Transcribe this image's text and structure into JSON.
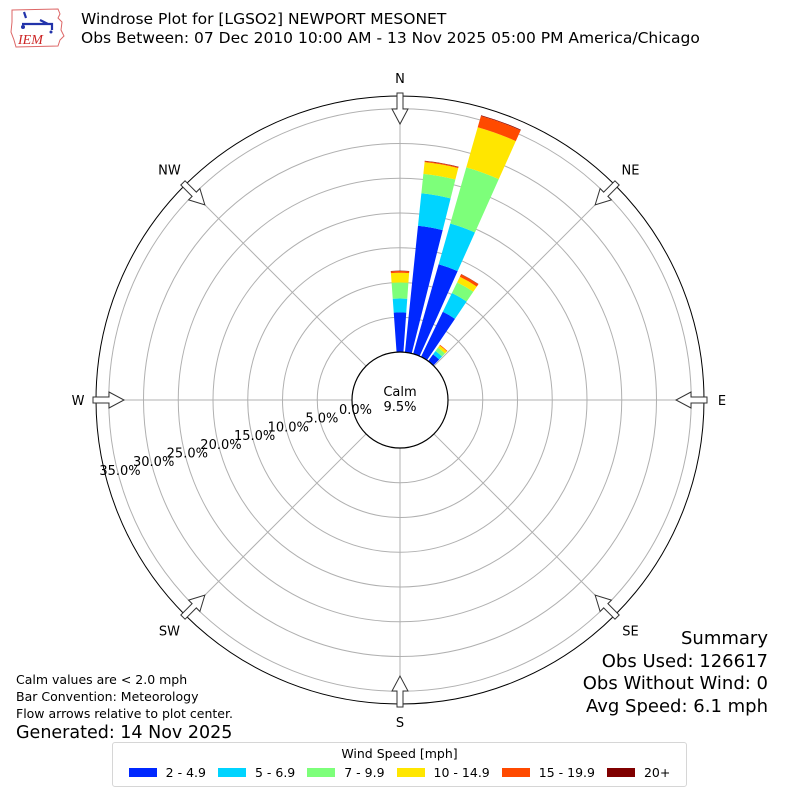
{
  "header": {
    "logo_text": "IEM",
    "title_line1": "Windrose Plot for [LGSO2] NEWPORT MESONET",
    "title_line2": "Obs Between: 07 Dec 2010 10:00 AM - 13 Nov 2025 05:00 PM America/Chicago"
  },
  "plot": {
    "calm_label": "Calm",
    "calm_value": "9.5%",
    "directions": [
      {
        "label": "N",
        "angle": 0
      },
      {
        "label": "NE",
        "angle": 45
      },
      {
        "label": "E",
        "angle": 90
      },
      {
        "label": "SE",
        "angle": 135
      },
      {
        "label": "S",
        "angle": 180
      },
      {
        "label": "SW",
        "angle": 225
      },
      {
        "label": "W",
        "angle": 270
      },
      {
        "label": "NW",
        "angle": 315
      }
    ],
    "ring_labels": [
      "0.0%",
      "5.0%",
      "10.0%",
      "15.0%",
      "20.0%",
      "25.0%",
      "30.0%",
      "35.0%"
    ]
  },
  "notes": {
    "line1": "Calm values are < 2.0 mph",
    "line2": "Bar Convention: Meteorology",
    "line3": "Flow arrows relative to plot center.",
    "generated": "Generated: 14 Nov 2025"
  },
  "summary": {
    "title": "Summary",
    "obs_used": "Obs Used: 126617",
    "obs_without_wind": "Obs Without Wind: 0",
    "avg_speed": "Avg Speed: 6.1 mph"
  },
  "legend": {
    "title": "Wind Speed [mph]",
    "items": [
      {
        "label": "2 - 4.9",
        "color": "#0028ff"
      },
      {
        "label": "5 - 6.9",
        "color": "#00d4ff"
      },
      {
        "label": "7 - 9.9",
        "color": "#7dff7a"
      },
      {
        "label": "10 - 14.9",
        "color": "#ffe600"
      },
      {
        "label": "15 - 19.9",
        "color": "#ff4a00"
      },
      {
        "label": "20+",
        "color": "#800000"
      }
    ]
  },
  "chart_data": {
    "type": "windrose",
    "title": "Windrose Plot for [LGSO2] NEWPORT MESONET",
    "subtitle": "Obs Between: 07 Dec 2010 10:00 AM - 13 Nov 2025 05:00 PM America/Chicago",
    "radial_unit": "percent frequency",
    "radial_ticks": [
      0,
      5,
      10,
      15,
      20,
      25,
      30,
      35
    ],
    "rlim": [
      0,
      36.7
    ],
    "calm_percent": 9.5,
    "bin_width_deg": 10,
    "speed_bins": [
      "2 - 4.9",
      "5 - 6.9",
      "7 - 9.9",
      "10 - 14.9",
      "15 - 19.9",
      "20+"
    ],
    "series_colors": [
      "#0028ff",
      "#00d4ff",
      "#7dff7a",
      "#ffe600",
      "#ff4a00",
      "#800000"
    ],
    "bars": [
      {
        "direction_deg": 0,
        "values": [
          5.7,
          2.0,
          2.3,
          1.4,
          0.25,
          0.05
        ]
      },
      {
        "direction_deg": 10,
        "values": [
          18.3,
          4.7,
          2.8,
          1.7,
          0.15,
          0.05
        ]
      },
      {
        "direction_deg": 20,
        "values": [
          13.4,
          6.1,
          8.4,
          6.0,
          1.7,
          0.1
        ]
      },
      {
        "direction_deg": 30,
        "values": [
          7.2,
          3.0,
          1.7,
          0.9,
          0.4,
          0.05
        ]
      },
      {
        "direction_deg": 40,
        "values": [
          1.2,
          0.6,
          0.6,
          0.4,
          0.1,
          0.0
        ]
      }
    ],
    "legend_title": "Wind Speed [mph]",
    "legend_position": "bottom-center",
    "grid": true
  }
}
